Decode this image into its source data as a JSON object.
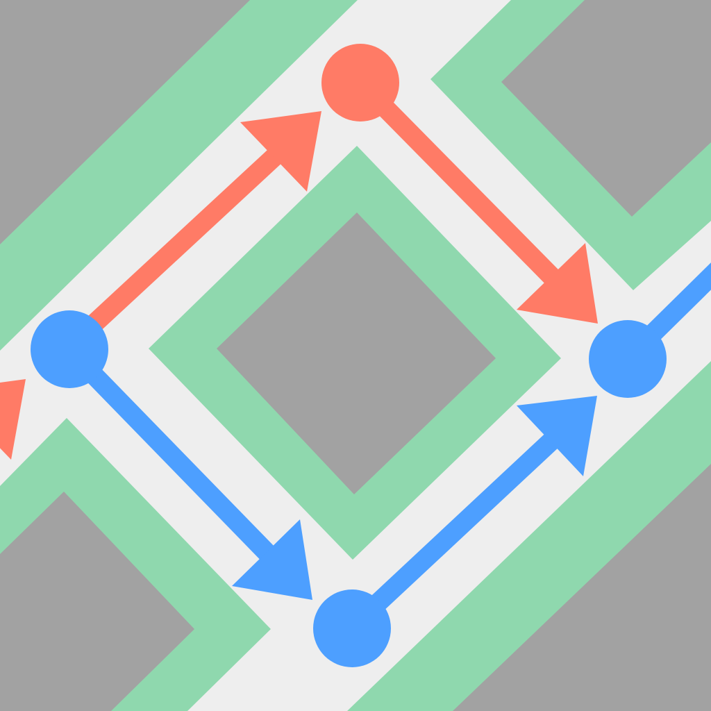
{
  "diagram": {
    "description_visible_text": "",
    "colors": {
      "background": "#EEEEEE",
      "block": "#A2A2A2",
      "border": "#8FD8AE",
      "red_route": "#FF7B66",
      "blue_route": "#4D9FFF"
    },
    "nodes": [
      {
        "id": "node-top",
        "color_role": "red_route"
      },
      {
        "id": "node-left",
        "color_role": "blue_route"
      },
      {
        "id": "node-right",
        "color_role": "blue_route"
      },
      {
        "id": "node-bottom",
        "color_role": "blue_route"
      }
    ],
    "routes": [
      {
        "id": "red-route",
        "color_role": "red_route",
        "path": [
          "node-left",
          "node-top",
          "node-right"
        ]
      },
      {
        "id": "blue-route",
        "color_role": "blue_route",
        "path": [
          "node-left",
          "node-bottom",
          "node-right"
        ]
      }
    ]
  }
}
